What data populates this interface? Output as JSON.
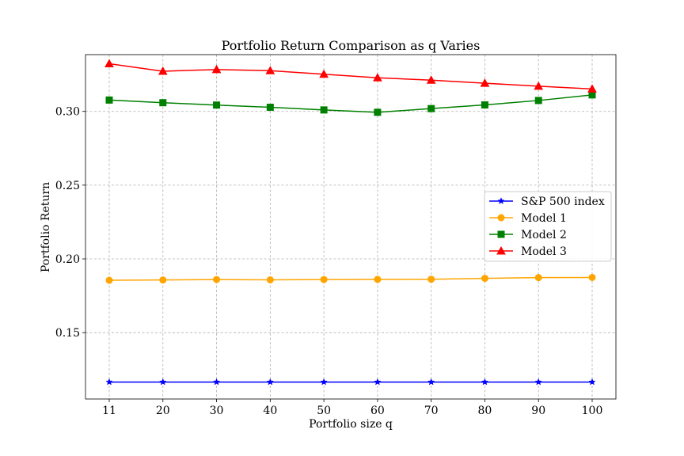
{
  "chart_data": {
    "type": "line",
    "title": "Portfolio Return Comparison as q Varies",
    "xlabel": "Portfolio size q",
    "ylabel": "Portfolio Return",
    "x": [
      "11",
      "20",
      "30",
      "40",
      "50",
      "60",
      "70",
      "80",
      "90",
      "100"
    ],
    "ylim": [
      0.105,
      0.3385
    ],
    "yticks": [
      0.15,
      0.2,
      0.25,
      0.3
    ],
    "ytick_labels": [
      "0.15",
      "0.20",
      "0.25",
      "0.30"
    ],
    "grid": true,
    "legend_position": "center-right",
    "series": [
      {
        "name": "S&P 500 index",
        "color": "#0000ff",
        "marker": "star",
        "values": [
          0.1165,
          0.1165,
          0.1165,
          0.1165,
          0.1165,
          0.1165,
          0.1165,
          0.1165,
          0.1165,
          0.1165
        ]
      },
      {
        "name": "Model 1",
        "color": "#ffa500",
        "marker": "circle",
        "values": [
          0.1855,
          0.1857,
          0.186,
          0.1858,
          0.186,
          0.1861,
          0.1862,
          0.1868,
          0.1873,
          0.1874
        ]
      },
      {
        "name": "Model 2",
        "color": "#008000",
        "marker": "square",
        "values": [
          0.3077,
          0.3059,
          0.3043,
          0.3028,
          0.301,
          0.2994,
          0.3019,
          0.3044,
          0.3074,
          0.3112
        ]
      },
      {
        "name": "Model 3",
        "color": "#ff0000",
        "marker": "triangle",
        "values": [
          0.3323,
          0.3272,
          0.3284,
          0.3276,
          0.3252,
          0.3228,
          0.3212,
          0.3191,
          0.3171,
          0.3152
        ]
      }
    ]
  }
}
